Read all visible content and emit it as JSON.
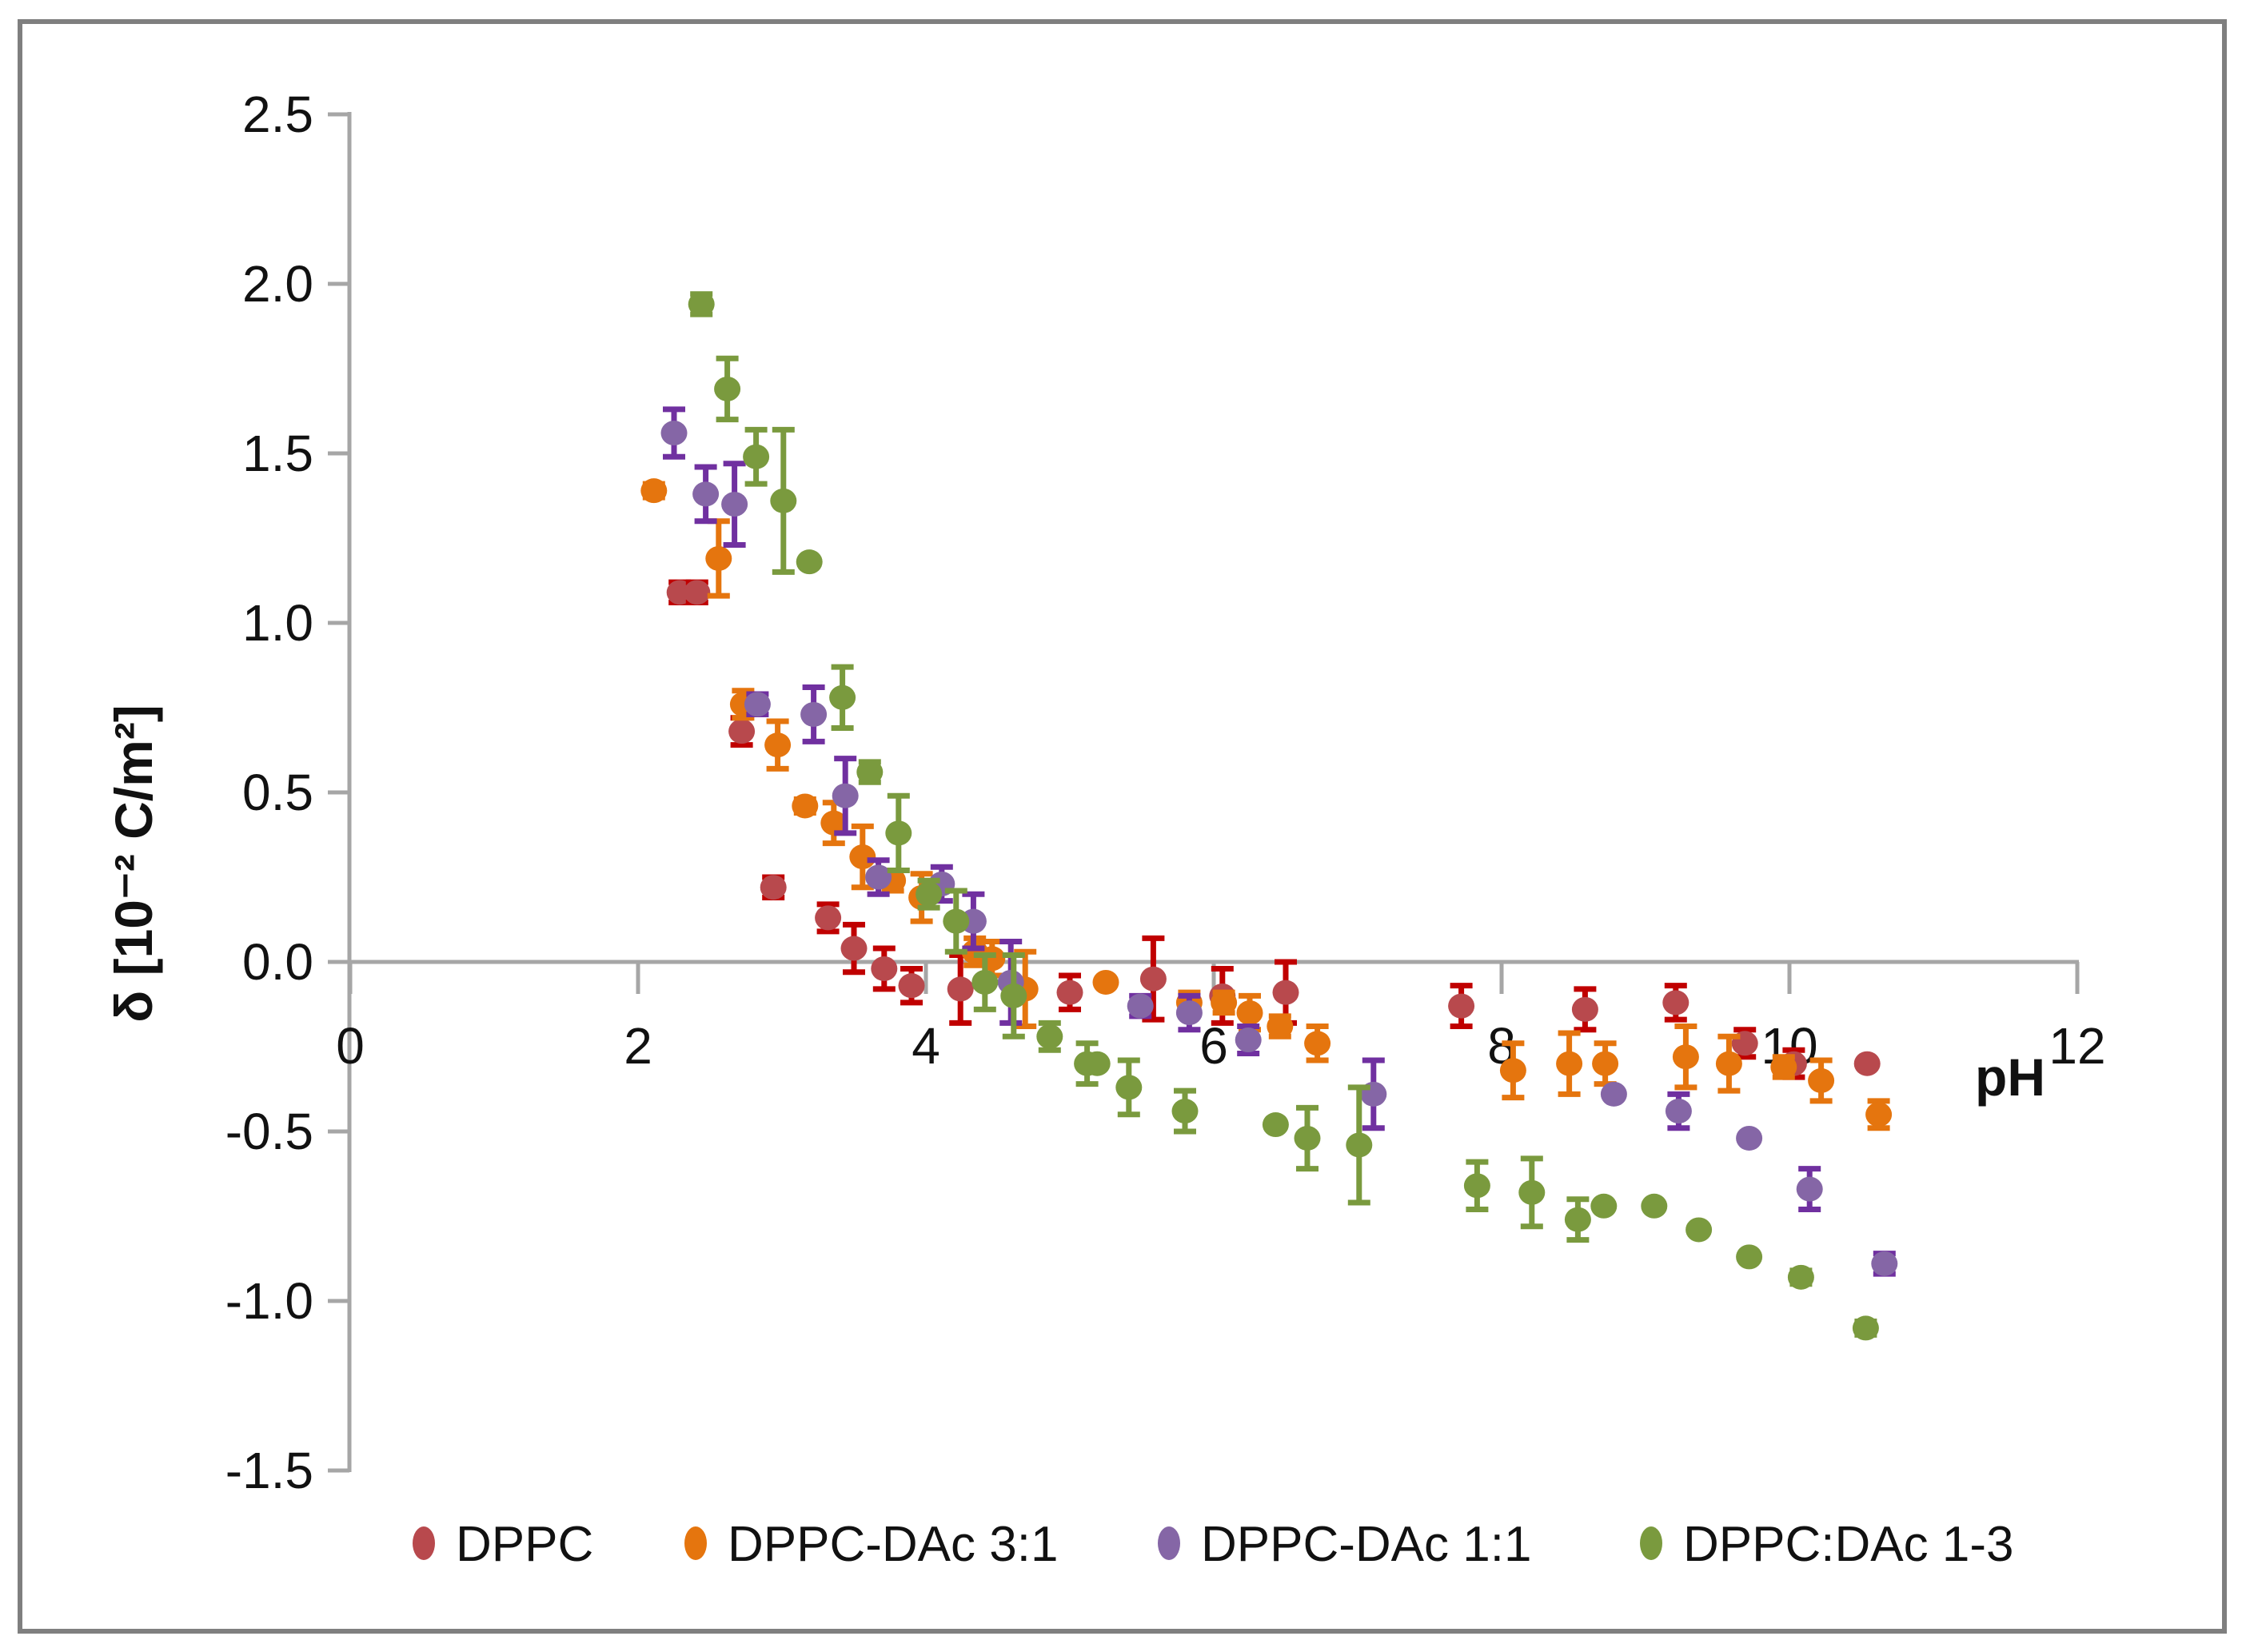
{
  "page": {
    "background_color": "#ffffff",
    "frame_color": "#7f7f7f",
    "axis_color": "#a6a6a6",
    "text_color": "#111111"
  },
  "chart_data": {
    "type": "scatter",
    "title": "",
    "xlabel": "pH",
    "ylabel": "δ [10⁻² C/m²]",
    "xlim": [
      0,
      12
    ],
    "ylim": [
      -1.5,
      2.5
    ],
    "grid": false,
    "legend_position": "bottom",
    "x_ticks": [
      "0",
      "2",
      "4",
      "6",
      "8",
      "10",
      "12"
    ],
    "y_ticks": [
      "2.5",
      "2.0",
      "1.5",
      "1.0",
      "0.5",
      "0.0",
      "-0.5",
      "-1.0",
      "-1.5"
    ],
    "series": [
      {
        "name": "DPPC",
        "marker_color": "#b8494d",
        "errorbar_color": "#c00000",
        "points_ph_delta_err": [
          [
            2.29,
            1.09,
            0.03
          ],
          [
            2.41,
            1.09,
            0.03
          ],
          [
            2.72,
            0.68,
            0.04
          ],
          [
            2.94,
            0.22,
            0.03
          ],
          [
            3.32,
            0.13,
            0.04
          ],
          [
            3.5,
            0.04,
            0.07
          ],
          [
            3.71,
            -0.02,
            0.06
          ],
          [
            3.9,
            -0.07,
            0.05
          ],
          [
            4.24,
            -0.08,
            0.1
          ],
          [
            5.0,
            -0.09,
            0.05
          ],
          [
            5.58,
            -0.05,
            0.12
          ],
          [
            6.06,
            -0.1,
            0.08
          ],
          [
            6.5,
            -0.09,
            0.09
          ],
          [
            7.72,
            -0.13,
            0.06
          ],
          [
            8.58,
            -0.14,
            0.06
          ],
          [
            9.21,
            -0.12,
            0.05
          ],
          [
            9.69,
            -0.24,
            0.04
          ],
          [
            10.03,
            -0.3,
            0.04
          ],
          [
            10.54,
            -0.3,
            0
          ]
        ]
      },
      {
        "name": "DPPC-DAc 3:1",
        "marker_color": "#e5750e",
        "errorbar_color": "#e5750e",
        "points_ph_delta_err": [
          [
            2.11,
            1.39,
            0.02
          ],
          [
            2.56,
            1.19,
            0.11
          ],
          [
            2.73,
            0.76,
            0.04
          ],
          [
            2.97,
            0.64,
            0.07
          ],
          [
            3.16,
            0.46,
            0.02
          ],
          [
            3.36,
            0.41,
            0.06
          ],
          [
            3.56,
            0.31,
            0.09
          ],
          [
            3.77,
            0.24,
            0.03
          ],
          [
            3.97,
            0.19,
            0.07
          ],
          [
            4.34,
            0.03,
            0.04
          ],
          [
            4.46,
            0.01,
            0.05
          ],
          [
            4.69,
            -0.08,
            0.11
          ],
          [
            5.25,
            -0.06,
            0
          ],
          [
            5.83,
            -0.12,
            0.03
          ],
          [
            6.07,
            -0.12,
            0.03
          ],
          [
            6.25,
            -0.15,
            0.05
          ],
          [
            6.46,
            -0.19,
            0.03
          ],
          [
            6.72,
            -0.24,
            0.05
          ],
          [
            8.08,
            -0.32,
            0.08
          ],
          [
            8.47,
            -0.3,
            0.09
          ],
          [
            8.72,
            -0.3,
            0.06
          ],
          [
            9.28,
            -0.28,
            0.09
          ],
          [
            9.58,
            -0.3,
            0.08
          ],
          [
            9.96,
            -0.31,
            0.03
          ],
          [
            10.22,
            -0.35,
            0.06
          ],
          [
            10.62,
            -0.45,
            0.04
          ]
        ]
      },
      {
        "name": "DPPC-DAc 1:1",
        "marker_color": "#8566a6",
        "errorbar_color": "#7030a0",
        "points_ph_delta_err": [
          [
            2.25,
            1.56,
            0.07
          ],
          [
            2.47,
            1.38,
            0.08
          ],
          [
            2.67,
            1.35,
            0.12
          ],
          [
            2.83,
            0.76,
            0.03
          ],
          [
            3.22,
            0.73,
            0.08
          ],
          [
            3.44,
            0.49,
            0.11
          ],
          [
            3.67,
            0.25,
            0.05
          ],
          [
            4.11,
            0.23,
            0.05
          ],
          [
            4.33,
            0.12,
            0.08
          ],
          [
            4.59,
            -0.06,
            0.12
          ],
          [
            5.49,
            -0.13,
            0.03
          ],
          [
            5.83,
            -0.15,
            0.05
          ],
          [
            6.24,
            -0.23,
            0.04
          ],
          [
            7.11,
            -0.39,
            0.1
          ],
          [
            8.78,
            -0.39,
            0
          ],
          [
            9.23,
            -0.44,
            0.05
          ],
          [
            9.72,
            -0.52,
            0
          ],
          [
            10.14,
            -0.67,
            0.06
          ],
          [
            10.66,
            -0.89,
            0.03
          ]
        ]
      },
      {
        "name": "DPPC:DAc 1-3",
        "marker_color": "#7a9a3e",
        "errorbar_color": "#7a9a3e",
        "points_ph_delta_err": [
          [
            2.44,
            1.94,
            0.03
          ],
          [
            2.62,
            1.69,
            0.09
          ],
          [
            2.82,
            1.49,
            0.08
          ],
          [
            3.01,
            1.36,
            0.21
          ],
          [
            3.19,
            1.18,
            0
          ],
          [
            3.42,
            0.78,
            0.09
          ],
          [
            3.61,
            0.56,
            0.03
          ],
          [
            3.81,
            0.38,
            0.11
          ],
          [
            4.02,
            0.2,
            0.04
          ],
          [
            4.21,
            0.12,
            0.09
          ],
          [
            4.41,
            -0.06,
            0.08
          ],
          [
            4.61,
            -0.1,
            0.12
          ],
          [
            4.86,
            -0.22,
            0.04
          ],
          [
            5.12,
            -0.3,
            0.06
          ],
          [
            5.19,
            -0.3,
            0
          ],
          [
            5.41,
            -0.37,
            0.08
          ],
          [
            5.8,
            -0.44,
            0.06
          ],
          [
            6.43,
            -0.48,
            0
          ],
          [
            6.65,
            -0.52,
            0.09
          ],
          [
            7.01,
            -0.54,
            0.17
          ],
          [
            7.83,
            -0.66,
            0.07
          ],
          [
            8.21,
            -0.68,
            0.1
          ],
          [
            8.53,
            -0.76,
            0.06
          ],
          [
            8.71,
            -0.72,
            0
          ],
          [
            9.06,
            -0.72,
            0
          ],
          [
            9.37,
            -0.79,
            0
          ],
          [
            9.72,
            -0.87,
            0
          ],
          [
            10.08,
            -0.93,
            0.02
          ],
          [
            10.53,
            -1.08,
            0.02
          ]
        ]
      }
    ]
  }
}
